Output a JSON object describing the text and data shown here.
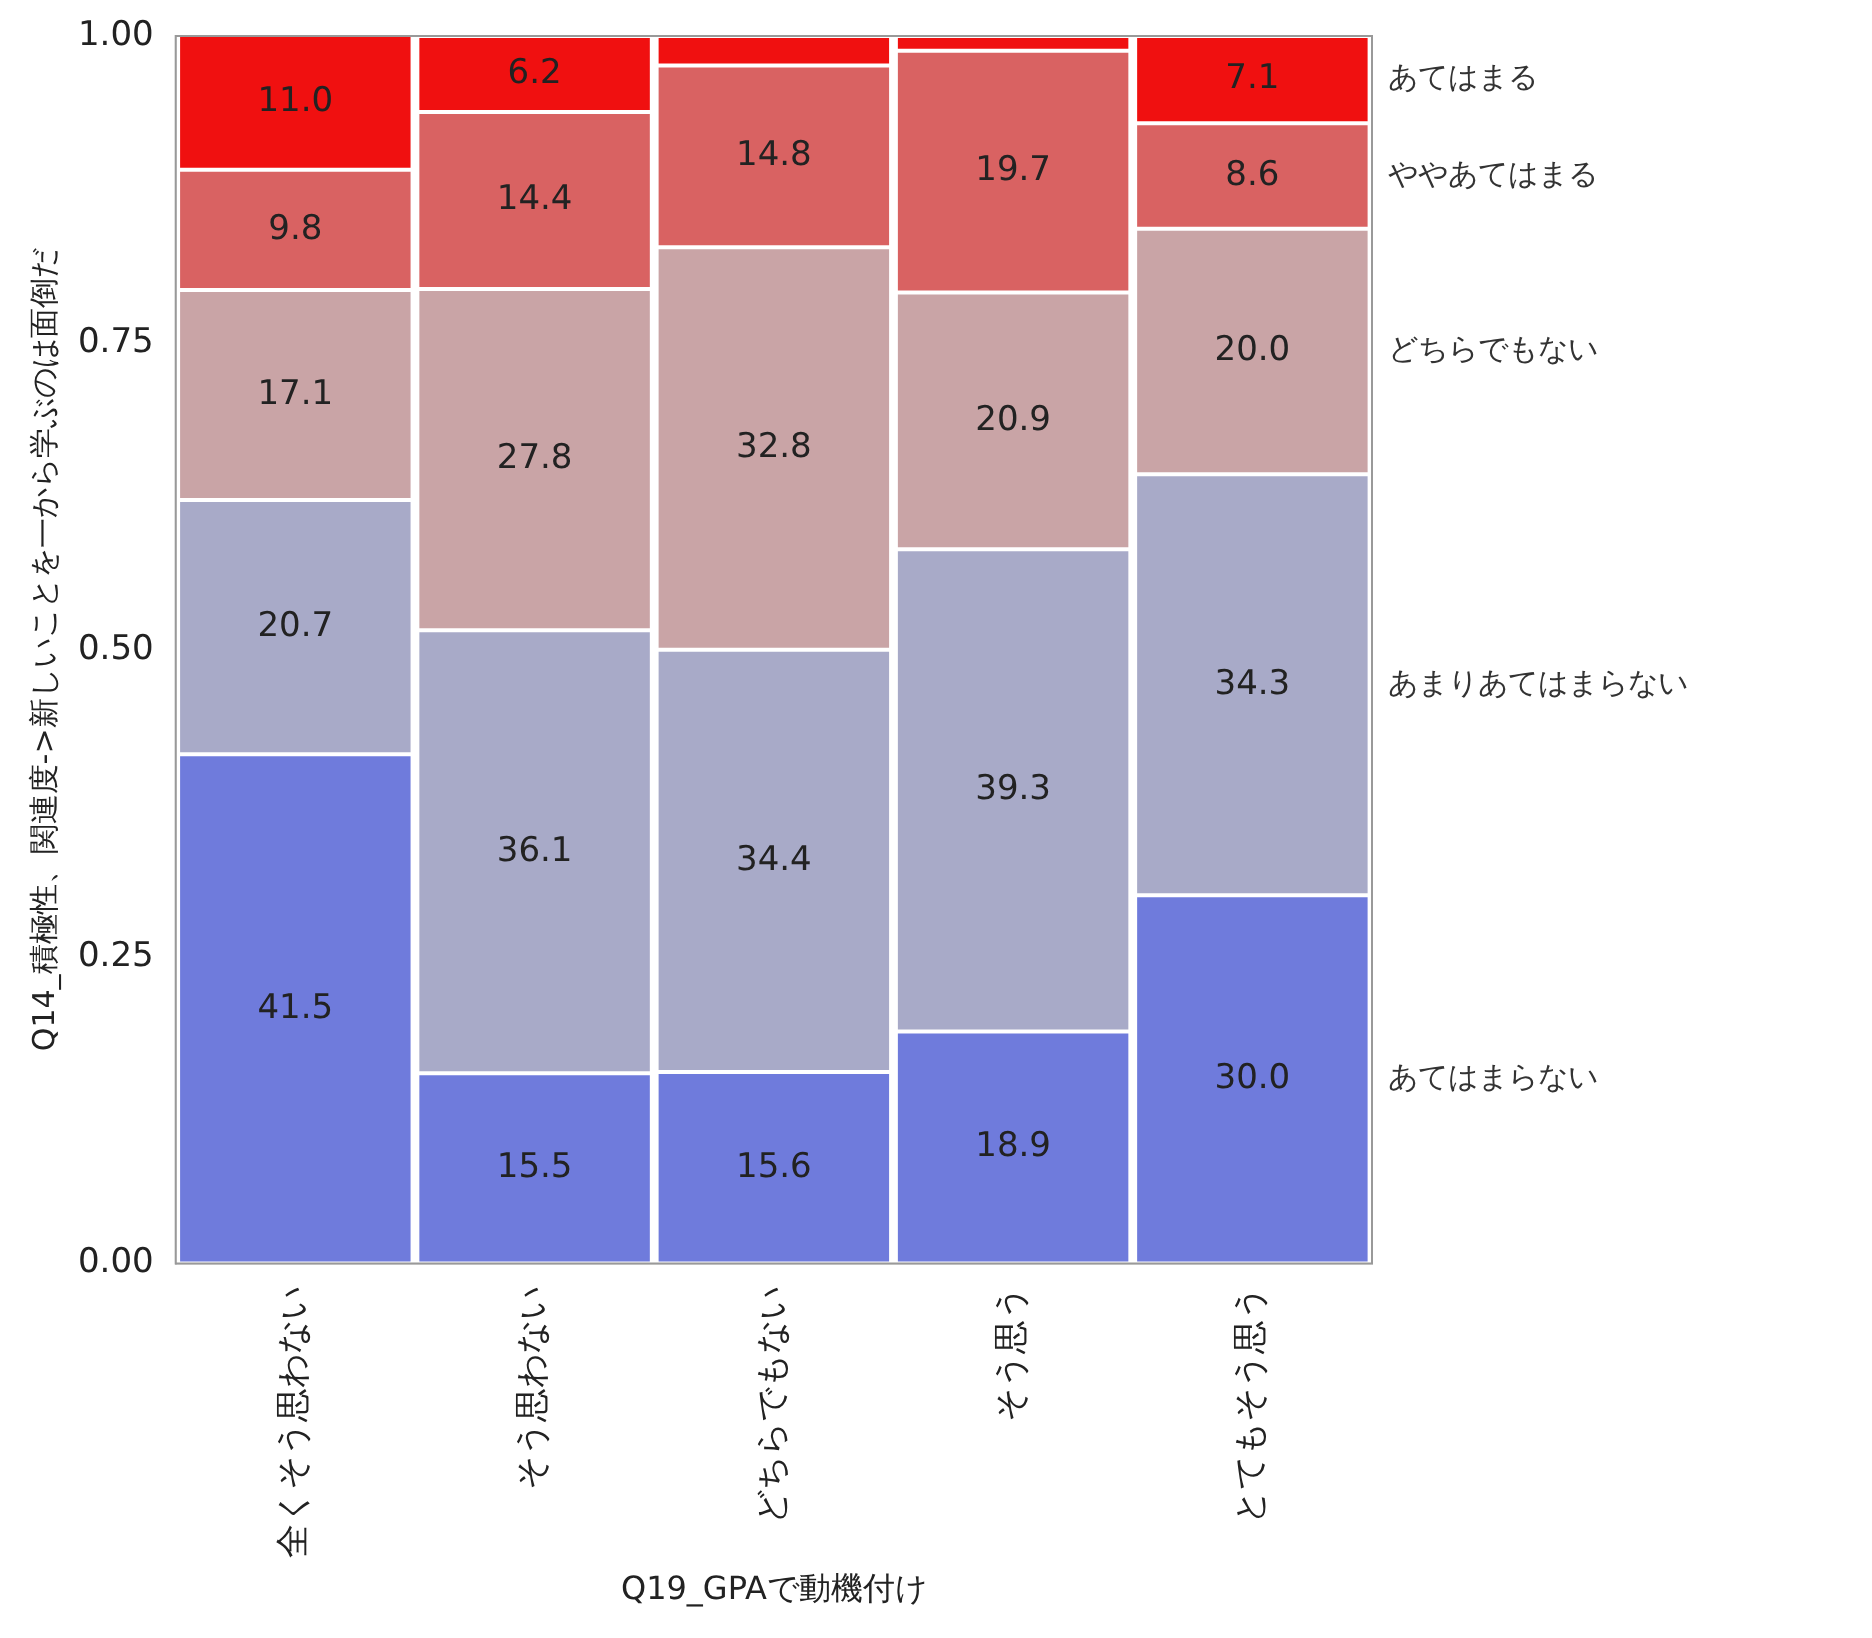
{
  "chart_data": {
    "type": "bar",
    "stacked": true,
    "xlabel": "Q19_GPAで動機付け",
    "ylabel": "Q14_積極性、関連度->新しいことを一から学ぶのは面倒だ",
    "categories": [
      "全くそう思わない",
      "そう思わない",
      "どちらでもない",
      "そう思う",
      "とてもそう思う"
    ],
    "ylim": [
      0,
      1
    ],
    "yticks": [
      {
        "value": 0,
        "label": "0.00"
      },
      {
        "value": 0.25,
        "label": "0.25"
      },
      {
        "value": 0.5,
        "label": "0.50"
      },
      {
        "value": 0.75,
        "label": "0.75"
      },
      {
        "value": 1,
        "label": "1.00"
      }
    ],
    "grid": false,
    "legend": false,
    "series": [
      {
        "name": "あてはまらない",
        "color": "#6f7bdc",
        "values": [
          0.415,
          0.155,
          0.156,
          0.189,
          0.3
        ]
      },
      {
        "name": "あまりあてはまらない",
        "color": "#a8aac8",
        "values": [
          0.207,
          0.361,
          0.344,
          0.393,
          0.343
        ]
      },
      {
        "name": "どちらでもない",
        "color": "#c9a4a6",
        "values": [
          0.171,
          0.278,
          0.328,
          0.209,
          0.2
        ]
      },
      {
        "name": "ややあてはまる",
        "color": "#d96262",
        "values": [
          0.098,
          0.144,
          0.148,
          0.197,
          0.086
        ]
      },
      {
        "name": "あてはまる",
        "color": "#f01010",
        "values": [
          0.11,
          0.062,
          0.024,
          0.012,
          0.071
        ]
      }
    ],
    "annotations": [
      "41.5",
      "15.5",
      "15.6",
      "18.9",
      "30.0",
      "20.7",
      "36.1",
      "34.4",
      "39.3",
      "34.3",
      "17.1",
      "27.8",
      "32.8",
      "20.9",
      "20.0",
      "9.8",
      "14.4",
      "14.8",
      "19.7",
      "8.6",
      "11.0",
      "6.2",
      "7.1"
    ]
  }
}
